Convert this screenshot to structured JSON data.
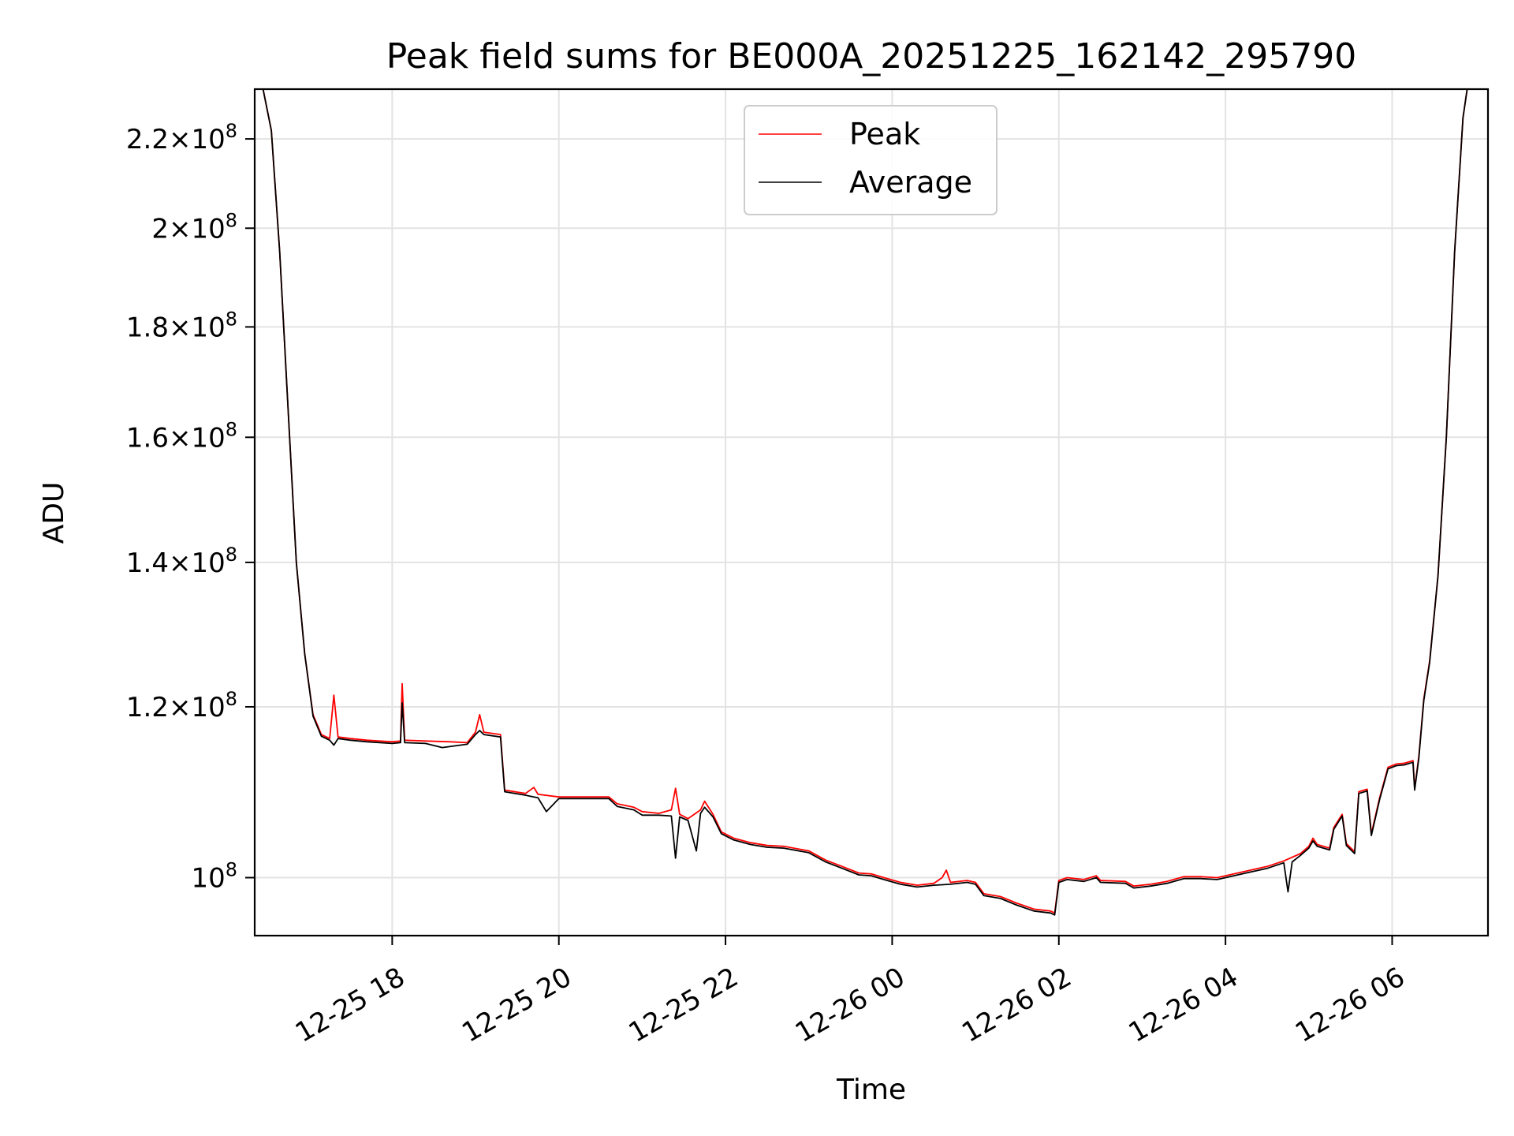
{
  "chart_data": {
    "type": "line",
    "title": "Peak field sums for BE000A_20251225_162142_295790",
    "xlabel": "Time",
    "ylabel": "ADU",
    "yscale": "log",
    "ylim": [
      94000000,
      232000000
    ],
    "xlim_hours": [
      -1.65,
      13.15
    ],
    "x_unit": "hours since 12-25 18:00",
    "grid": true,
    "legend_position": "top-center",
    "x_ticks": [
      {
        "label": "12-25 18",
        "value": 0
      },
      {
        "label": "12-25 20",
        "value": 2
      },
      {
        "label": "12-25 22",
        "value": 4
      },
      {
        "label": "12-26 00",
        "value": 6
      },
      {
        "label": "12-26 02",
        "value": 8
      },
      {
        "label": "12-26 04",
        "value": 10
      },
      {
        "label": "12-26 06",
        "value": 12
      }
    ],
    "y_ticks": [
      {
        "mantissa": "2.2",
        "exp": "8",
        "value": 220000000
      },
      {
        "mantissa": "2",
        "exp": "8",
        "value": 200000000
      },
      {
        "mantissa": "1.8",
        "exp": "8",
        "value": 180000000
      },
      {
        "mantissa": "1.6",
        "exp": "8",
        "value": 160000000
      },
      {
        "mantissa": "1.4",
        "exp": "8",
        "value": 140000000
      },
      {
        "mantissa": "1.2",
        "exp": "8",
        "value": 120000000
      },
      {
        "mantissa": "",
        "exp": "8",
        "value": 100000000
      }
    ],
    "series": [
      {
        "name": "Peak",
        "color": "#ff0000",
        "points": [
          [
            -1.55,
            232000000
          ],
          [
            -1.45,
            222000000
          ],
          [
            -1.35,
            195000000
          ],
          [
            -1.25,
            165000000
          ],
          [
            -1.15,
            140000000
          ],
          [
            -1.05,
            127000000
          ],
          [
            -0.95,
            119000000
          ],
          [
            -0.85,
            116500000
          ],
          [
            -0.75,
            116000000
          ],
          [
            -0.7,
            121500000
          ],
          [
            -0.65,
            116200000
          ],
          [
            -0.5,
            116000000
          ],
          [
            -0.3,
            115800000
          ],
          [
            0.0,
            115600000
          ],
          [
            0.1,
            115700000
          ],
          [
            0.12,
            123000000
          ],
          [
            0.15,
            115800000
          ],
          [
            0.4,
            115700000
          ],
          [
            0.7,
            115600000
          ],
          [
            0.9,
            115500000
          ],
          [
            1.0,
            116800000
          ],
          [
            1.05,
            119000000
          ],
          [
            1.1,
            116800000
          ],
          [
            1.3,
            116500000
          ],
          [
            1.35,
            109800000
          ],
          [
            1.6,
            109400000
          ],
          [
            1.7,
            110100000
          ],
          [
            1.75,
            109300000
          ],
          [
            2.0,
            109000000
          ],
          [
            2.3,
            109000000
          ],
          [
            2.6,
            109000000
          ],
          [
            2.7,
            108200000
          ],
          [
            2.9,
            107800000
          ],
          [
            3.0,
            107300000
          ],
          [
            3.2,
            107100000
          ],
          [
            3.35,
            107500000
          ],
          [
            3.4,
            110000000
          ],
          [
            3.45,
            107000000
          ],
          [
            3.55,
            106500000
          ],
          [
            3.7,
            107500000
          ],
          [
            3.75,
            108500000
          ],
          [
            3.85,
            107000000
          ],
          [
            3.95,
            105000000
          ],
          [
            4.1,
            104300000
          ],
          [
            4.3,
            103800000
          ],
          [
            4.5,
            103500000
          ],
          [
            4.7,
            103400000
          ],
          [
            5.0,
            102900000
          ],
          [
            5.2,
            101900000
          ],
          [
            5.4,
            101200000
          ],
          [
            5.6,
            100500000
          ],
          [
            5.75,
            100400000
          ],
          [
            5.9,
            100000000
          ],
          [
            6.1,
            99500000
          ],
          [
            6.3,
            99200000
          ],
          [
            6.5,
            99400000
          ],
          [
            6.6,
            100000000
          ],
          [
            6.65,
            100800000
          ],
          [
            6.7,
            99500000
          ],
          [
            6.9,
            99700000
          ],
          [
            7.0,
            99500000
          ],
          [
            7.1,
            98300000
          ],
          [
            7.3,
            98000000
          ],
          [
            7.5,
            97300000
          ],
          [
            7.7,
            96700000
          ],
          [
            7.9,
            96500000
          ],
          [
            7.95,
            96300000
          ],
          [
            8.0,
            99700000
          ],
          [
            8.1,
            100000000
          ],
          [
            8.3,
            99800000
          ],
          [
            8.45,
            100200000
          ],
          [
            8.5,
            99700000
          ],
          [
            8.8,
            99600000
          ],
          [
            8.9,
            99100000
          ],
          [
            9.1,
            99300000
          ],
          [
            9.3,
            99600000
          ],
          [
            9.5,
            100100000
          ],
          [
            9.7,
            100100000
          ],
          [
            9.9,
            100000000
          ],
          [
            10.1,
            100400000
          ],
          [
            10.3,
            100800000
          ],
          [
            10.5,
            101200000
          ],
          [
            10.7,
            101800000
          ],
          [
            10.9,
            102600000
          ],
          [
            11.0,
            103400000
          ],
          [
            11.05,
            104300000
          ],
          [
            11.1,
            103600000
          ],
          [
            11.25,
            103200000
          ],
          [
            11.3,
            105500000
          ],
          [
            11.4,
            107000000
          ],
          [
            11.45,
            103700000
          ],
          [
            11.55,
            102800000
          ],
          [
            11.6,
            109600000
          ],
          [
            11.7,
            109900000
          ],
          [
            11.75,
            104800000
          ],
          [
            11.85,
            108900000
          ],
          [
            11.95,
            112500000
          ],
          [
            12.05,
            112900000
          ],
          [
            12.15,
            113000000
          ],
          [
            12.25,
            113300000
          ],
          [
            12.27,
            110000000
          ],
          [
            12.32,
            113800000
          ],
          [
            12.38,
            121000000
          ],
          [
            12.45,
            126000000
          ],
          [
            12.55,
            138000000
          ],
          [
            12.65,
            160000000
          ],
          [
            12.75,
            195000000
          ],
          [
            12.85,
            225000000
          ],
          [
            12.9,
            232000000
          ]
        ]
      },
      {
        "name": "Average",
        "color": "#000000",
        "points": [
          [
            -1.55,
            232000000
          ],
          [
            -1.45,
            222000000
          ],
          [
            -1.35,
            195000000
          ],
          [
            -1.25,
            165000000
          ],
          [
            -1.15,
            140000000
          ],
          [
            -1.05,
            127000000
          ],
          [
            -0.95,
            118800000
          ],
          [
            -0.85,
            116300000
          ],
          [
            -0.75,
            115800000
          ],
          [
            -0.7,
            115200000
          ],
          [
            -0.65,
            116000000
          ],
          [
            -0.5,
            115800000
          ],
          [
            -0.3,
            115600000
          ],
          [
            0.0,
            115400000
          ],
          [
            0.1,
            115500000
          ],
          [
            0.12,
            120500000
          ],
          [
            0.15,
            115500000
          ],
          [
            0.4,
            115400000
          ],
          [
            0.6,
            114900000
          ],
          [
            0.9,
            115300000
          ],
          [
            1.0,
            116500000
          ],
          [
            1.05,
            117000000
          ],
          [
            1.1,
            116500000
          ],
          [
            1.3,
            116200000
          ],
          [
            1.35,
            109600000
          ],
          [
            1.6,
            109200000
          ],
          [
            1.7,
            109000000
          ],
          [
            1.75,
            108900000
          ],
          [
            1.85,
            107300000
          ],
          [
            2.0,
            108800000
          ],
          [
            2.3,
            108800000
          ],
          [
            2.6,
            108800000
          ],
          [
            2.7,
            107900000
          ],
          [
            2.9,
            107500000
          ],
          [
            3.0,
            106900000
          ],
          [
            3.2,
            106900000
          ],
          [
            3.35,
            106800000
          ],
          [
            3.4,
            102100000
          ],
          [
            3.45,
            106700000
          ],
          [
            3.55,
            106300000
          ],
          [
            3.65,
            102900000
          ],
          [
            3.7,
            107100000
          ],
          [
            3.75,
            107800000
          ],
          [
            3.85,
            106700000
          ],
          [
            3.95,
            104800000
          ],
          [
            4.1,
            104100000
          ],
          [
            4.3,
            103600000
          ],
          [
            4.5,
            103300000
          ],
          [
            4.7,
            103200000
          ],
          [
            5.0,
            102700000
          ],
          [
            5.2,
            101700000
          ],
          [
            5.4,
            101000000
          ],
          [
            5.6,
            100300000
          ],
          [
            5.75,
            100200000
          ],
          [
            5.9,
            99800000
          ],
          [
            6.1,
            99300000
          ],
          [
            6.3,
            99000000
          ],
          [
            6.5,
            99200000
          ],
          [
            6.7,
            99300000
          ],
          [
            6.9,
            99500000
          ],
          [
            7.0,
            99300000
          ],
          [
            7.1,
            98100000
          ],
          [
            7.3,
            97800000
          ],
          [
            7.5,
            97100000
          ],
          [
            7.7,
            96500000
          ],
          [
            7.9,
            96300000
          ],
          [
            7.95,
            96100000
          ],
          [
            8.0,
            99500000
          ],
          [
            8.1,
            99800000
          ],
          [
            8.3,
            99600000
          ],
          [
            8.45,
            100000000
          ],
          [
            8.5,
            99500000
          ],
          [
            8.8,
            99400000
          ],
          [
            8.9,
            98900000
          ],
          [
            9.1,
            99100000
          ],
          [
            9.3,
            99400000
          ],
          [
            9.5,
            99900000
          ],
          [
            9.7,
            99900000
          ],
          [
            9.9,
            99800000
          ],
          [
            10.1,
            100200000
          ],
          [
            10.3,
            100600000
          ],
          [
            10.5,
            101000000
          ],
          [
            10.7,
            101600000
          ],
          [
            10.75,
            98500000
          ],
          [
            10.8,
            101700000
          ],
          [
            10.9,
            102400000
          ],
          [
            11.0,
            103200000
          ],
          [
            11.05,
            104000000
          ],
          [
            11.1,
            103400000
          ],
          [
            11.25,
            103000000
          ],
          [
            11.3,
            105300000
          ],
          [
            11.4,
            106800000
          ],
          [
            11.45,
            103500000
          ],
          [
            11.55,
            102600000
          ],
          [
            11.6,
            109400000
          ],
          [
            11.7,
            109700000
          ],
          [
            11.75,
            104600000
          ],
          [
            11.85,
            108700000
          ],
          [
            11.95,
            112300000
          ],
          [
            12.05,
            112700000
          ],
          [
            12.15,
            112800000
          ],
          [
            12.25,
            113100000
          ],
          [
            12.27,
            109800000
          ],
          [
            12.32,
            113600000
          ],
          [
            12.38,
            120800000
          ],
          [
            12.45,
            125800000
          ],
          [
            12.55,
            138000000
          ],
          [
            12.65,
            160000000
          ],
          [
            12.75,
            195000000
          ],
          [
            12.85,
            225000000
          ],
          [
            12.9,
            232000000
          ]
        ]
      }
    ]
  }
}
